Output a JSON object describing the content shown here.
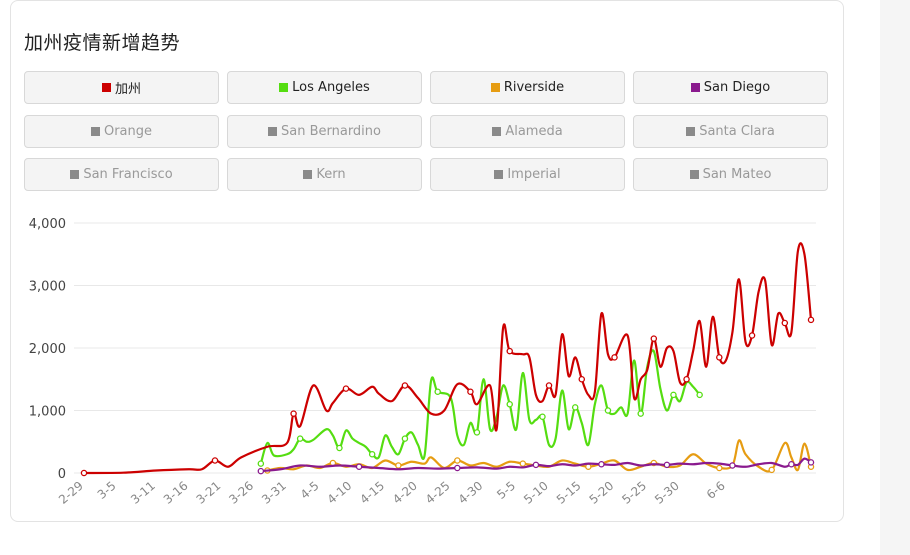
{
  "title": "加州疫情新增趋势",
  "legend": [
    {
      "label": "加州",
      "color": "#cc0000",
      "active": true
    },
    {
      "label": "Los Angeles",
      "color": "#55dd11",
      "active": true
    },
    {
      "label": "Riverside",
      "color": "#e69c12",
      "active": true
    },
    {
      "label": "San Diego",
      "color": "#8a1a8e",
      "active": true
    },
    {
      "label": "Orange",
      "color": "#888888",
      "active": false
    },
    {
      "label": "San Bernardino",
      "color": "#888888",
      "active": false
    },
    {
      "label": "Alameda",
      "color": "#888888",
      "active": false
    },
    {
      "label": "Santa Clara",
      "color": "#888888",
      "active": false
    },
    {
      "label": "San Francisco",
      "color": "#888888",
      "active": false
    },
    {
      "label": "Kern",
      "color": "#888888",
      "active": false
    },
    {
      "label": "Imperial",
      "color": "#888888",
      "active": false
    },
    {
      "label": "San Mateo",
      "color": "#888888",
      "active": false
    }
  ],
  "chart_data": {
    "type": "line",
    "x_tick_labels": [
      "2-29",
      "3-5",
      "3-11",
      "3-16",
      "3-21",
      "3-26",
      "3-31",
      "4-5",
      "4-10",
      "4-15",
      "4-20",
      "4-25",
      "4-30",
      "5-5",
      "5-10",
      "5-15",
      "5-20",
      "5-25",
      "5-30",
      "6-6"
    ],
    "ylim": [
      0,
      4000
    ],
    "y_ticks": [
      0,
      1000,
      2000,
      3000,
      4000
    ],
    "y_tick_labels": [
      "0",
      "1,000",
      "2,000",
      "3,000",
      "4,000"
    ],
    "grid": true,
    "series": [
      {
        "name": "加州",
        "color": "#cc0000",
        "points": [
          [
            0,
            0
          ],
          [
            6,
            5
          ],
          [
            11,
            40
          ],
          [
            16,
            60
          ],
          [
            18,
            60
          ],
          [
            20,
            200
          ],
          [
            22,
            100
          ],
          [
            24,
            250
          ],
          [
            28,
            420
          ],
          [
            31,
            480
          ],
          [
            32,
            950
          ],
          [
            33,
            750
          ],
          [
            35,
            1400
          ],
          [
            37,
            1000
          ],
          [
            38,
            1120
          ],
          [
            40,
            1350
          ],
          [
            42,
            1250
          ],
          [
            44,
            1380
          ],
          [
            45,
            1270
          ],
          [
            47,
            1150
          ],
          [
            49,
            1400
          ],
          [
            51,
            1200
          ],
          [
            53,
            950
          ],
          [
            55,
            1000
          ],
          [
            57,
            1420
          ],
          [
            59,
            1300
          ],
          [
            60,
            1100
          ],
          [
            62,
            1400
          ],
          [
            63,
            700
          ],
          [
            64,
            2330
          ],
          [
            65,
            1950
          ],
          [
            67,
            1900
          ],
          [
            68,
            1850
          ],
          [
            69,
            1250
          ],
          [
            70,
            1150
          ],
          [
            71,
            1400
          ],
          [
            72,
            1250
          ],
          [
            73,
            2220
          ],
          [
            74,
            1550
          ],
          [
            75,
            1850
          ],
          [
            76,
            1500
          ],
          [
            77,
            1250
          ],
          [
            78,
            1300
          ],
          [
            79,
            2550
          ],
          [
            80,
            1900
          ],
          [
            81,
            1850
          ],
          [
            83,
            2200
          ],
          [
            84,
            1200
          ],
          [
            85,
            1500
          ],
          [
            86,
            1650
          ],
          [
            87,
            2150
          ],
          [
            88,
            1700
          ],
          [
            89,
            2000
          ],
          [
            90,
            1950
          ],
          [
            91,
            1450
          ],
          [
            92,
            1500
          ],
          [
            93,
            1950
          ],
          [
            94,
            2430
          ],
          [
            95,
            1700
          ],
          [
            96,
            2500
          ],
          [
            97,
            1850
          ],
          [
            98,
            1800
          ],
          [
            99,
            2250
          ],
          [
            100,
            3100
          ],
          [
            101,
            2100
          ],
          [
            102,
            2200
          ],
          [
            103,
            2900
          ],
          [
            104,
            3080
          ],
          [
            105,
            2050
          ],
          [
            106,
            2550
          ],
          [
            107,
            2400
          ],
          [
            108,
            2250
          ],
          [
            109,
            3550
          ],
          [
            110,
            3500
          ],
          [
            111,
            2450
          ]
        ]
      },
      {
        "name": "Los Angeles",
        "color": "#55dd11",
        "points": [
          [
            27,
            150
          ],
          [
            28,
            480
          ],
          [
            29,
            280
          ],
          [
            31,
            300
          ],
          [
            32,
            380
          ],
          [
            33,
            550
          ],
          [
            34,
            500
          ],
          [
            35,
            530
          ],
          [
            37,
            700
          ],
          [
            38,
            600
          ],
          [
            39,
            400
          ],
          [
            40,
            680
          ],
          [
            41,
            550
          ],
          [
            42,
            480
          ],
          [
            43,
            420
          ],
          [
            44,
            300
          ],
          [
            45,
            250
          ],
          [
            46,
            600
          ],
          [
            47,
            420
          ],
          [
            48,
            300
          ],
          [
            49,
            550
          ],
          [
            50,
            650
          ],
          [
            51,
            450
          ],
          [
            52,
            280
          ],
          [
            53,
            1480
          ],
          [
            54,
            1300
          ],
          [
            56,
            1200
          ],
          [
            57,
            600
          ],
          [
            58,
            450
          ],
          [
            59,
            800
          ],
          [
            60,
            650
          ],
          [
            61,
            1500
          ],
          [
            62,
            700
          ],
          [
            63,
            900
          ],
          [
            64,
            1400
          ],
          [
            65,
            1100
          ],
          [
            66,
            700
          ],
          [
            67,
            1600
          ],
          [
            68,
            850
          ],
          [
            69,
            850
          ],
          [
            70,
            900
          ],
          [
            71,
            450
          ],
          [
            72,
            550
          ],
          [
            73,
            1320
          ],
          [
            74,
            700
          ],
          [
            75,
            1050
          ],
          [
            76,
            800
          ],
          [
            77,
            450
          ],
          [
            78,
            1100
          ],
          [
            79,
            1400
          ],
          [
            80,
            1000
          ],
          [
            81,
            950
          ],
          [
            82,
            1050
          ],
          [
            83,
            950
          ],
          [
            84,
            1800
          ],
          [
            85,
            950
          ],
          [
            86,
            1700
          ],
          [
            87,
            1950
          ],
          [
            88,
            1350
          ],
          [
            89,
            1000
          ],
          [
            90,
            1250
          ],
          [
            91,
            1150
          ],
          [
            92,
            1450
          ],
          [
            93,
            1380
          ],
          [
            94,
            1250
          ]
        ]
      },
      {
        "name": "Riverside",
        "color": "#e69c12",
        "points": [
          [
            28,
            40
          ],
          [
            30,
            80
          ],
          [
            32,
            60
          ],
          [
            34,
            120
          ],
          [
            36,
            80
          ],
          [
            38,
            160
          ],
          [
            40,
            100
          ],
          [
            42,
            140
          ],
          [
            44,
            80
          ],
          [
            46,
            200
          ],
          [
            48,
            120
          ],
          [
            50,
            180
          ],
          [
            52,
            150
          ],
          [
            53,
            250
          ],
          [
            55,
            80
          ],
          [
            57,
            200
          ],
          [
            59,
            120
          ],
          [
            61,
            160
          ],
          [
            63,
            100
          ],
          [
            65,
            180
          ],
          [
            67,
            150
          ],
          [
            69,
            120
          ],
          [
            71,
            100
          ],
          [
            73,
            200
          ],
          [
            75,
            150
          ],
          [
            77,
            100
          ],
          [
            79,
            150
          ],
          [
            81,
            200
          ],
          [
            83,
            50
          ],
          [
            85,
            100
          ],
          [
            87,
            160
          ],
          [
            89,
            100
          ],
          [
            91,
            120
          ],
          [
            93,
            300
          ],
          [
            95,
            150
          ],
          [
            97,
            80
          ],
          [
            99,
            120
          ],
          [
            100,
            520
          ],
          [
            101,
            300
          ],
          [
            103,
            100
          ],
          [
            105,
            50
          ],
          [
            107,
            480
          ],
          [
            108,
            250
          ],
          [
            109,
            50
          ],
          [
            110,
            470
          ],
          [
            111,
            100
          ]
        ]
      },
      {
        "name": "San Diego",
        "color": "#8a1a8e",
        "points": [
          [
            27,
            30
          ],
          [
            30,
            60
          ],
          [
            33,
            120
          ],
          [
            36,
            100
          ],
          [
            39,
            120
          ],
          [
            42,
            100
          ],
          [
            45,
            80
          ],
          [
            48,
            60
          ],
          [
            51,
            80
          ],
          [
            54,
            70
          ],
          [
            57,
            80
          ],
          [
            60,
            90
          ],
          [
            63,
            70
          ],
          [
            65,
            100
          ],
          [
            67,
            90
          ],
          [
            69,
            130
          ],
          [
            71,
            110
          ],
          [
            73,
            140
          ],
          [
            75,
            120
          ],
          [
            77,
            150
          ],
          [
            79,
            140
          ],
          [
            81,
            130
          ],
          [
            83,
            160
          ],
          [
            85,
            120
          ],
          [
            87,
            140
          ],
          [
            89,
            130
          ],
          [
            91,
            150
          ],
          [
            93,
            140
          ],
          [
            95,
            160
          ],
          [
            97,
            150
          ],
          [
            99,
            120
          ],
          [
            101,
            100
          ],
          [
            103,
            140
          ],
          [
            105,
            160
          ],
          [
            107,
            100
          ],
          [
            108,
            140
          ],
          [
            109,
            130
          ],
          [
            110,
            230
          ],
          [
            111,
            170
          ]
        ]
      }
    ]
  }
}
